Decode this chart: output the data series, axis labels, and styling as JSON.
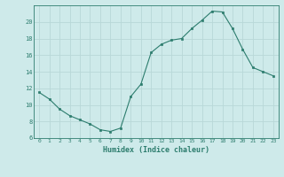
{
  "x": [
    0,
    1,
    2,
    3,
    4,
    5,
    6,
    7,
    8,
    9,
    10,
    11,
    12,
    13,
    14,
    15,
    16,
    17,
    18,
    19,
    20,
    21,
    22,
    23
  ],
  "y": [
    11.5,
    10.7,
    9.5,
    8.7,
    8.2,
    7.7,
    7.0,
    6.8,
    7.2,
    11.0,
    12.5,
    16.3,
    17.3,
    17.8,
    18.0,
    19.2,
    20.2,
    21.3,
    21.2,
    19.2,
    16.7,
    14.5,
    14.0,
    13.5
  ],
  "xlim": [
    -0.5,
    23.5
  ],
  "ylim": [
    6,
    22
  ],
  "yticks": [
    6,
    8,
    10,
    12,
    14,
    16,
    18,
    20
  ],
  "xticks": [
    0,
    1,
    2,
    3,
    4,
    5,
    6,
    7,
    8,
    9,
    10,
    11,
    12,
    13,
    14,
    15,
    16,
    17,
    18,
    19,
    20,
    21,
    22,
    23
  ],
  "xlabel": "Humidex (Indice chaleur)",
  "bg_color": "#ceeaea",
  "grid_color": "#b8d8d8",
  "line_color": "#2d7d6e",
  "marker_color": "#2d7d6e"
}
